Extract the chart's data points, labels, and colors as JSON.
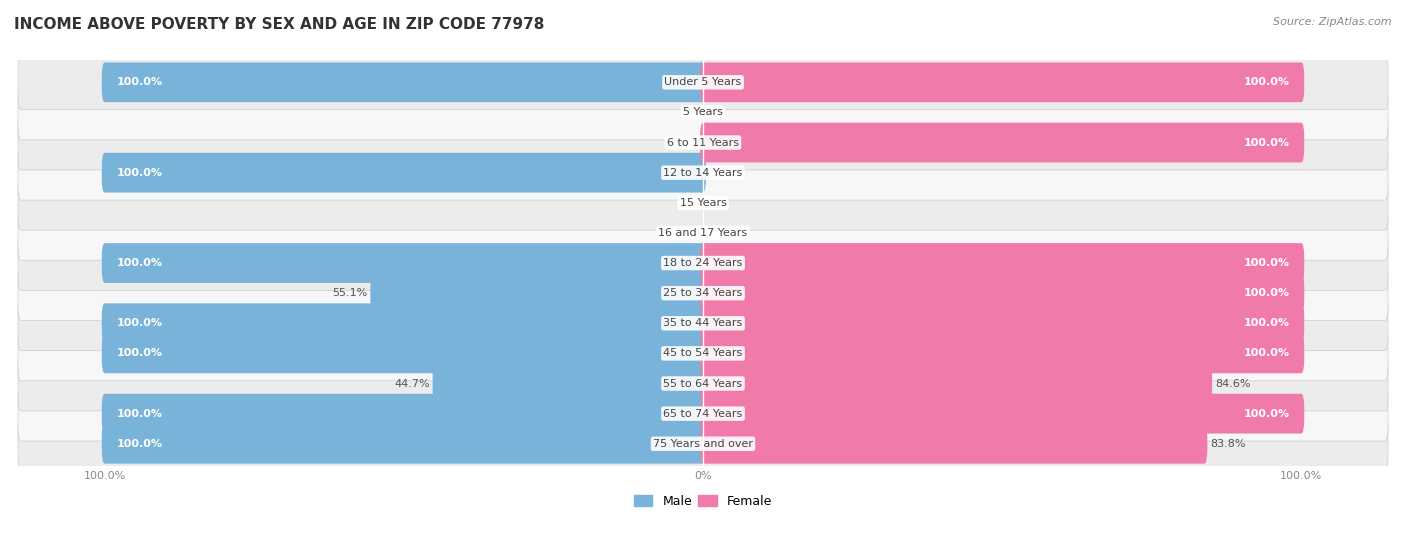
{
  "title": "INCOME ABOVE POVERTY BY SEX AND AGE IN ZIP CODE 77978",
  "source": "Source: ZipAtlas.com",
  "categories": [
    "Under 5 Years",
    "5 Years",
    "6 to 11 Years",
    "12 to 14 Years",
    "15 Years",
    "16 and 17 Years",
    "18 to 24 Years",
    "25 to 34 Years",
    "35 to 44 Years",
    "45 to 54 Years",
    "55 to 64 Years",
    "65 to 74 Years",
    "75 Years and over"
  ],
  "male_values": [
    100.0,
    0.0,
    0.0,
    100.0,
    0.0,
    0.0,
    100.0,
    55.1,
    100.0,
    100.0,
    44.7,
    100.0,
    100.0
  ],
  "female_values": [
    100.0,
    0.0,
    100.0,
    0.0,
    0.0,
    0.0,
    100.0,
    100.0,
    100.0,
    100.0,
    84.6,
    100.0,
    83.8
  ],
  "male_color": "#7ab3d9",
  "female_color": "#f07aaa",
  "male_color_light": "#aed0ea",
  "female_color_light": "#f5aac8",
  "title_fontsize": 11,
  "label_fontsize": 8,
  "value_fontsize": 8,
  "legend_fontsize": 9,
  "tick_fontsize": 8,
  "row_bg_light": "#f0f0f0",
  "row_bg_dark": "#e0e0e0"
}
